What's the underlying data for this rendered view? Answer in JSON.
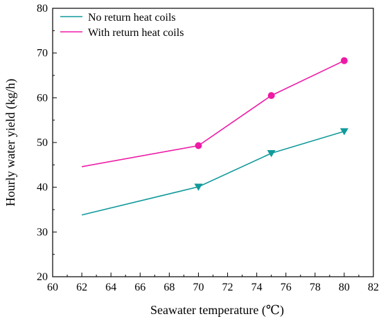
{
  "chart_data": {
    "type": "line",
    "title": "",
    "xlabel": "Seawater temperature (℃)",
    "ylabel": "Hourly water yield (kg/h)",
    "xlim": [
      60,
      82
    ],
    "ylim": [
      20,
      80
    ],
    "xticks": [
      "60",
      "62",
      "64",
      "66",
      "68",
      "70",
      "72",
      "74",
      "76",
      "78",
      "80",
      "82"
    ],
    "yticks": [
      "20",
      "30",
      "40",
      "50",
      "60",
      "70",
      "80"
    ],
    "grid": false,
    "legend_placement": "top-left",
    "series": [
      {
        "name": "No return heat coils",
        "color": "#119a9b",
        "marker": "triangle-down",
        "x": [
          62,
          70,
          75,
          80
        ],
        "y": [
          33.8,
          40.1,
          47.6,
          52.5
        ]
      },
      {
        "name": "With return heat coils",
        "color": "#ee1aa6",
        "marker": "circle",
        "x": [
          62,
          70,
          75,
          80
        ],
        "y": [
          44.6,
          49.3,
          60.5,
          68.3
        ]
      }
    ]
  }
}
